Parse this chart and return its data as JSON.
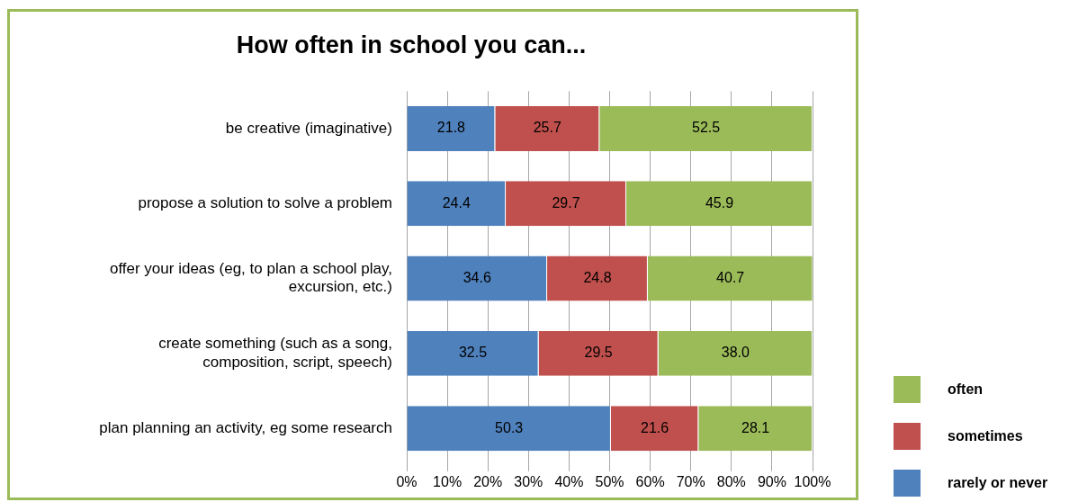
{
  "chart_data": {
    "type": "bar",
    "orientation": "horizontal",
    "stacked": true,
    "title": "How often in school you can...",
    "categories": [
      "be creative (imaginative)",
      "propose a solution to solve a problem",
      "offer your ideas (eg, to plan a school play,\nexcursion, etc.)",
      "create something (such as a song,\ncomposition, script, speech)",
      "plan planning an activity, eg some research"
    ],
    "series": [
      {
        "name": "rarely or never",
        "color": "#4f81bd",
        "values": [
          21.8,
          24.4,
          34.6,
          32.5,
          50.3
        ],
        "value_labels": [
          "21.8",
          "24.4",
          "34.6",
          "32.5",
          "50.3"
        ]
      },
      {
        "name": "sometimes",
        "color": "#c0504d",
        "values": [
          25.7,
          29.7,
          24.8,
          29.5,
          21.6
        ],
        "value_labels": [
          "25.7",
          "29.7",
          "24.8",
          "29.5",
          "21.6"
        ]
      },
      {
        "name": "often",
        "color": "#9bbb59",
        "values": [
          52.5,
          45.9,
          40.7,
          38.0,
          28.1
        ],
        "value_labels": [
          "52.5",
          "45.9",
          "40.7",
          "38.0",
          "28.1"
        ]
      }
    ],
    "xlim": [
      0,
      100
    ],
    "xticks": [
      {
        "value": 0,
        "label": "0%"
      },
      {
        "value": 10,
        "label": "10%"
      },
      {
        "value": 20,
        "label": "20%"
      },
      {
        "value": 30,
        "label": "30%"
      },
      {
        "value": 40,
        "label": "40%"
      },
      {
        "value": 50,
        "label": "50%"
      },
      {
        "value": 60,
        "label": "60%"
      },
      {
        "value": 70,
        "label": "70%"
      },
      {
        "value": 80,
        "label": "80%"
      },
      {
        "value": 90,
        "label": "90%"
      },
      {
        "value": 100,
        "label": "100%"
      }
    ],
    "grid": "x",
    "legend": "bottom right"
  }
}
